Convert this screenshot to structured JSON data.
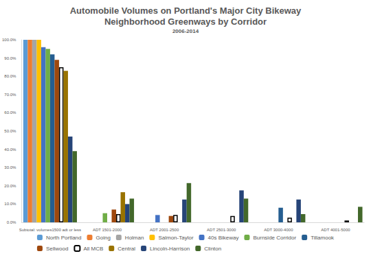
{
  "chart_data": {
    "type": "bar",
    "title": "Automobile Volumes on Portland's Major City Bikeway\nNeighborhood Greenways by Corridor",
    "subtitle": "2006-2014",
    "categories": [
      "Subtotal: volumes1500 adt or less",
      "ADT 1501-2000",
      "ADT 2001-2500",
      "ADT 2501-3000",
      "ADT 3000-4000",
      "ADT 4001-5000"
    ],
    "series": [
      {
        "name": "North Portland",
        "color": "#5b9bd5",
        "values": [
          100,
          0,
          0,
          0,
          0,
          0
        ]
      },
      {
        "name": "Going",
        "color": "#ed7d31",
        "values": [
          100,
          0,
          0,
          0,
          0,
          0
        ]
      },
      {
        "name": "Holman",
        "color": "#a5a5a5",
        "values": [
          100,
          0,
          0,
          0,
          0,
          0
        ]
      },
      {
        "name": "Salmon-Taylor",
        "color": "#ffc000",
        "values": [
          100,
          0,
          0,
          0,
          0,
          0
        ]
      },
      {
        "name": "40s Bikeway",
        "color": "#4472c4",
        "values": [
          96,
          0,
          4,
          0,
          0,
          0
        ]
      },
      {
        "name": "Burnside Corridor",
        "color": "#70ad47",
        "values": [
          95,
          5,
          0,
          0,
          0,
          0
        ]
      },
      {
        "name": "Tillamook",
        "color": "#255e91",
        "values": [
          92,
          0,
          0,
          0,
          8,
          0
        ]
      },
      {
        "name": "Sellwood",
        "color": "#9e480e",
        "values": [
          89,
          7,
          3.5,
          0,
          0,
          0
        ]
      },
      {
        "name": "All MCB",
        "color": "#ffffff",
        "values": [
          85,
          4.5,
          4,
          3.5,
          2.5,
          1
        ]
      },
      {
        "name": "Central",
        "color": "#997300",
        "values": [
          83,
          16.5,
          0,
          0,
          0,
          0
        ]
      },
      {
        "name": "Lincoln-Harrison",
        "color": "#264478",
        "values": [
          47,
          10,
          12.5,
          17.5,
          12.5,
          0
        ]
      },
      {
        "name": "Clinton",
        "color": "#43682b",
        "values": [
          39,
          13,
          21.5,
          13,
          4.5,
          8.5
        ]
      }
    ],
    "ylim": [
      0,
      100
    ],
    "yticks": [
      {
        "value": 0,
        "label": "0.0%"
      },
      {
        "value": 10,
        "label": "10.0%"
      },
      {
        "value": 20,
        "label": "20.0%"
      },
      {
        "value": 30,
        "label": "30.0%"
      },
      {
        "value": 40,
        "label": "40.0%"
      },
      {
        "value": 50,
        "label": "50.0%"
      },
      {
        "value": 60,
        "label": "60.0%"
      },
      {
        "value": 70,
        "label": "70.0%"
      },
      {
        "value": 80,
        "label": "80.0%"
      },
      {
        "value": 90,
        "label": "90.0%"
      },
      {
        "value": 100,
        "label": "100.0%"
      }
    ],
    "grid": false,
    "legend": "bottom"
  }
}
